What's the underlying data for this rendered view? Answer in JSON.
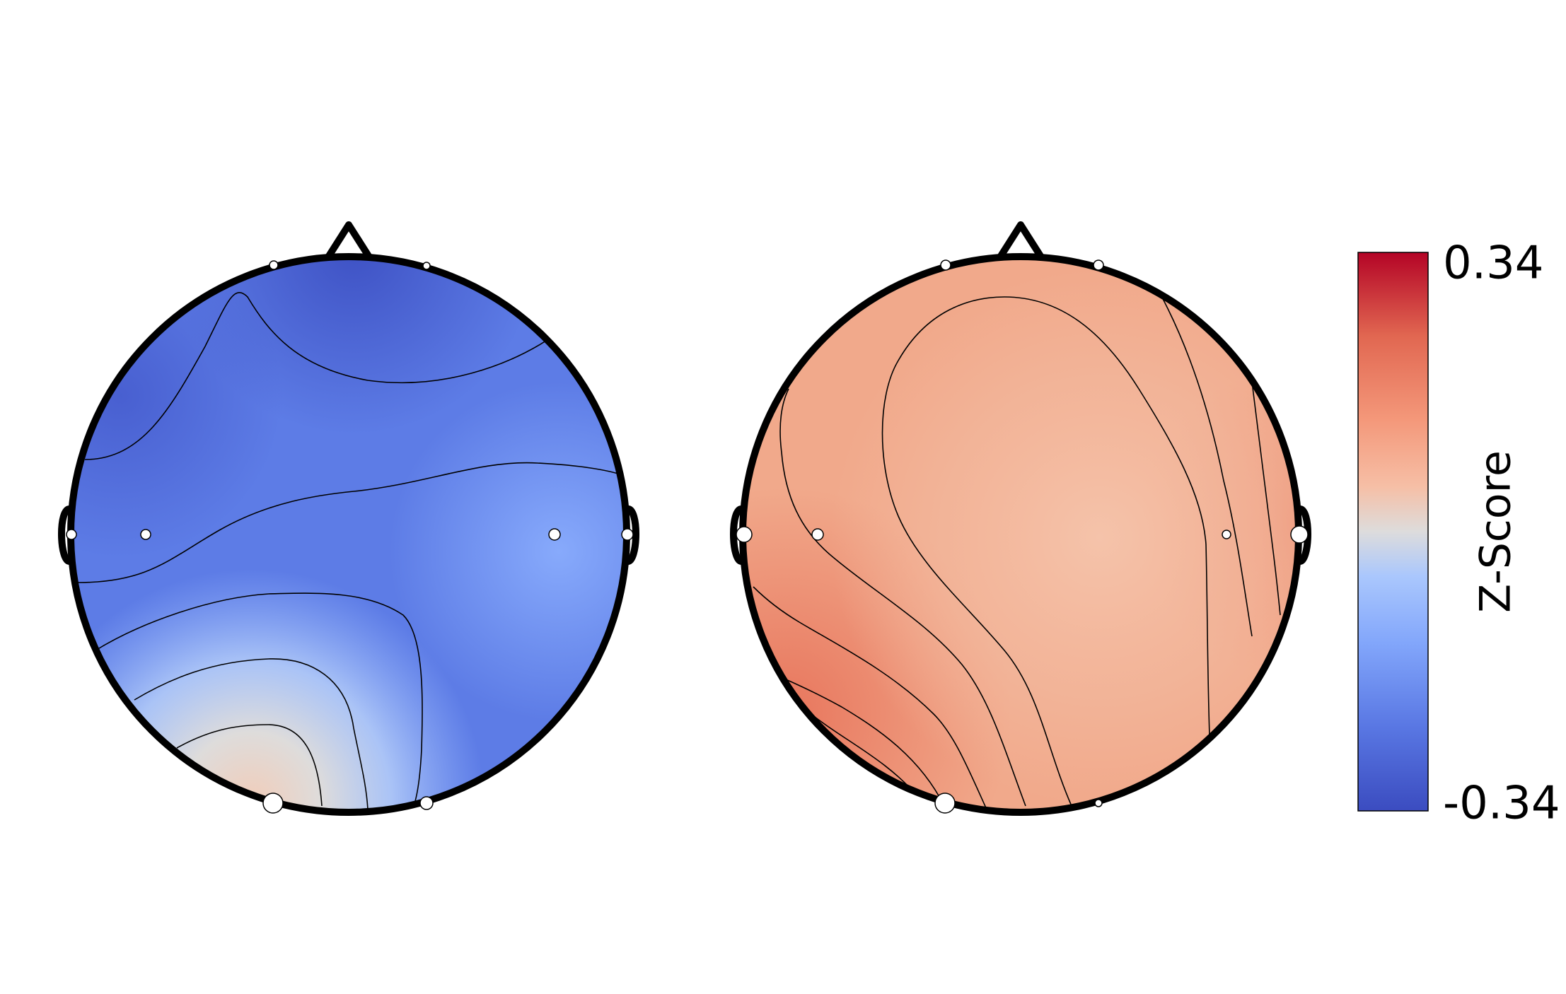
{
  "chart_data": {
    "type": "heatmap",
    "subtype": "eeg-topomap",
    "colormap": "coolwarm",
    "colors": {
      "low": "#3b4cc0",
      "mid": "#dddcdc",
      "high": "#b40426",
      "outline": "#000000",
      "contour": "#000000",
      "sensor": "#ffffff"
    },
    "colorbar": {
      "label": "Z-Score",
      "min": -0.34,
      "max": 0.34,
      "tick_labels": [
        "0.34",
        "-0.34"
      ]
    },
    "topomaps": [
      {
        "id": "topomap-1",
        "value_range": [
          -0.28,
          0.06
        ],
        "sensors": [
          {
            "x": -0.27,
            "y": 0.97,
            "weight": 0.3
          },
          {
            "x": 0.28,
            "y": 0.97,
            "weight": 0.2
          },
          {
            "x": -1.0,
            "y": 0.0,
            "weight": 0.3
          },
          {
            "x": -0.73,
            "y": 0.0,
            "weight": 0.3
          },
          {
            "x": 0.74,
            "y": 0.0,
            "weight": 0.4
          },
          {
            "x": 1.0,
            "y": 0.0,
            "weight": 0.4
          },
          {
            "x": -0.28,
            "y": -0.97,
            "weight": 1.0
          },
          {
            "x": 0.28,
            "y": -0.97,
            "weight": 0.5
          }
        ]
      },
      {
        "id": "topomap-2",
        "value_range": [
          0.1,
          0.18
        ],
        "sensors": [
          {
            "x": -0.27,
            "y": 0.97,
            "weight": 0.4
          },
          {
            "x": 0.28,
            "y": 0.97,
            "weight": 0.4
          },
          {
            "x": -1.0,
            "y": 0.0,
            "weight": 1.0
          },
          {
            "x": -0.73,
            "y": 0.0,
            "weight": 0.5
          },
          {
            "x": 0.74,
            "y": 0.0,
            "weight": 0.3
          },
          {
            "x": 1.0,
            "y": 0.0,
            "weight": 1.0
          },
          {
            "x": -0.28,
            "y": -0.97,
            "weight": 1.0
          },
          {
            "x": 0.28,
            "y": -0.97,
            "weight": 0.2
          }
        ]
      }
    ]
  }
}
